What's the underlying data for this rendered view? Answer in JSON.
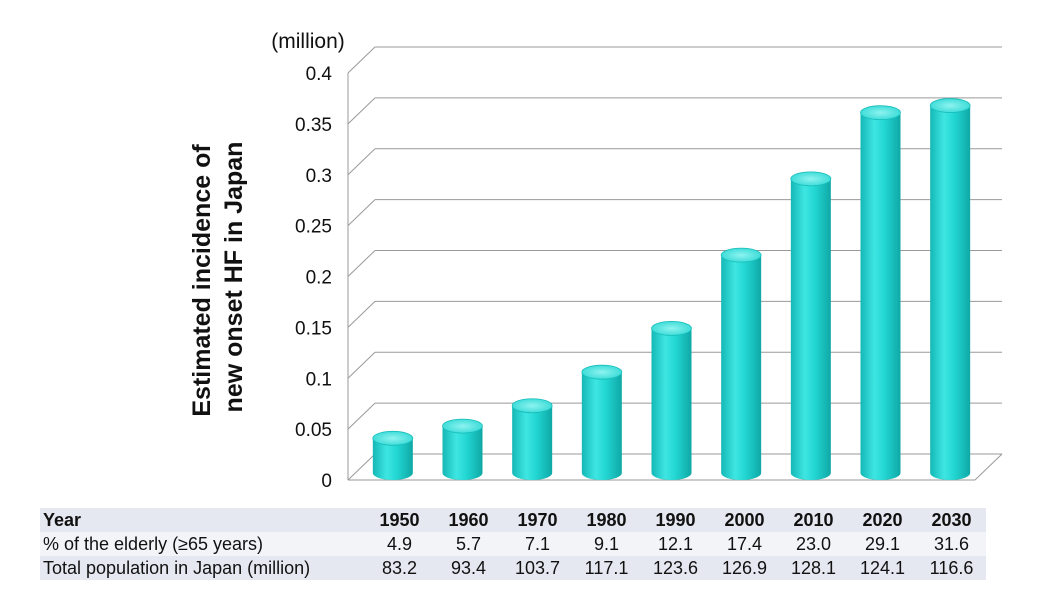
{
  "chart_data": {
    "type": "bar",
    "unit_label": "(million)",
    "ylabel_lines": [
      "Estimated incidence of",
      "new onset HF in Japan"
    ],
    "categories": [
      "1950",
      "1960",
      "1970",
      "1980",
      "1990",
      "2000",
      "2010",
      "2020",
      "2030"
    ],
    "values": [
      0.04,
      0.052,
      0.072,
      0.105,
      0.148,
      0.22,
      0.295,
      0.36,
      0.367
    ],
    "ylim": [
      0,
      0.4
    ],
    "yticks": [
      "0",
      "0.05",
      "0.1",
      "0.15",
      "0.2",
      "0.25",
      "0.3",
      "0.35",
      "0.4"
    ],
    "grid": true,
    "bar_color": "#1fd4d0"
  },
  "table": {
    "rows": [
      {
        "label": "Year",
        "values": [
          "1950",
          "1960",
          "1970",
          "1980",
          "1990",
          "2000",
          "2010",
          "2020",
          "2030"
        ]
      },
      {
        "label": "% of the elderly (≥65 years)",
        "values": [
          "4.9",
          "5.7",
          "7.1",
          "9.1",
          "12.1",
          "17.4",
          "23.0",
          "29.1",
          "31.6"
        ]
      },
      {
        "label": "Total population in Japan (million)",
        "values": [
          "83.2",
          "93.4",
          "103.7",
          "117.1",
          "123.6",
          "126.9",
          "128.1",
          "124.1",
          "116.6"
        ]
      }
    ]
  }
}
